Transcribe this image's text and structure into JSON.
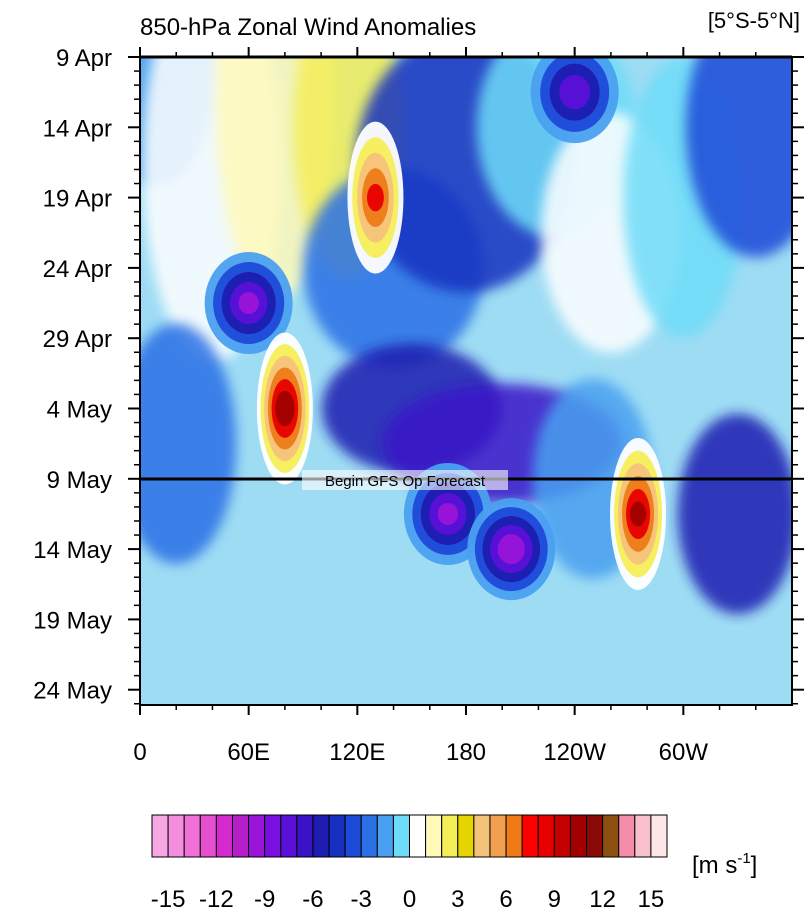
{
  "chart_data": {
    "type": "heatmap",
    "title": "850-hPa Zonal Wind Anomalies",
    "region_label": "[5°S-5°N]",
    "x_ticks": [
      "0",
      "60E",
      "120E",
      "180",
      "120W",
      "60W"
    ],
    "x_range_deg_east": [
      0,
      360
    ],
    "x_tick_values_deg_east": [
      0,
      60,
      120,
      180,
      240,
      300
    ],
    "y_ticks": [
      "9 Apr",
      "14 Apr",
      "19 Apr",
      "24 Apr",
      "29 Apr",
      "4 May",
      "9 May",
      "14 May",
      "19 May",
      "24 May"
    ],
    "y_range": [
      "9 Apr",
      "25 May"
    ],
    "annotation": "Begin GFS Op Forecast",
    "annotation_date": "9 May",
    "colorbar": {
      "unit_label": "[m s",
      "unit_superscript": "-1",
      "unit_suffix": "]",
      "tick_labels": [
        "-15",
        "-12",
        "-9",
        "-6",
        "-3",
        "0",
        "3",
        "6",
        "9",
        "12",
        "15"
      ],
      "levels": [
        -15,
        -14,
        -13,
        -12,
        -11,
        -10,
        -9,
        -8,
        -7,
        -6,
        -5,
        -4,
        -3,
        -2,
        -1,
        0,
        1,
        2,
        3,
        4,
        5,
        6,
        7,
        8,
        9,
        10,
        11,
        12,
        13,
        14,
        15
      ],
      "colors": [
        "#f7a8e4",
        "#f48fe0",
        "#f070d8",
        "#e54fd0",
        "#d42ad0",
        "#b51ec8",
        "#9a14d8",
        "#7a10e0",
        "#5a10d8",
        "#3a12c8",
        "#1e1cb0",
        "#1830c0",
        "#1e4ad8",
        "#2c70e6",
        "#4aa0f0",
        "#6edcf8",
        "#ffffff",
        "#fff9b8",
        "#f4ee58",
        "#e6d400",
        "#f5c27a",
        "#f2a050",
        "#ee7a18",
        "#ff0000",
        "#e80000",
        "#c40000",
        "#a00000",
        "#8a0a08",
        "#8c5010",
        "#f58ca8",
        "#f8c0cc",
        "#fde6e8"
      ]
    },
    "features": [
      {
        "type": "negative",
        "lon": 240,
        "date_index": 1,
        "value": -8
      },
      {
        "type": "negative",
        "lon": 170,
        "date_index": 13,
        "value": -9
      },
      {
        "type": "negative",
        "lon": 205,
        "date_index": 14,
        "value": -10
      },
      {
        "type": "negative",
        "lon": 60,
        "date_index": 7,
        "value": -9
      },
      {
        "type": "positive",
        "lon": 80,
        "date_index": 10,
        "value": 12
      },
      {
        "type": "positive",
        "lon": 275,
        "date_index": 13,
        "value": 11
      },
      {
        "type": "positive",
        "lon": 130,
        "date_index": 4,
        "value": 9
      }
    ]
  }
}
